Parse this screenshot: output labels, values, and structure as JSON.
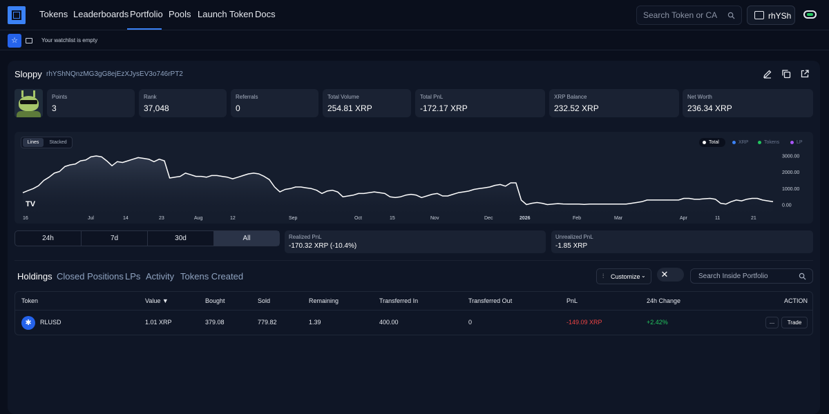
{
  "nav": {
    "links": [
      "Tokens",
      "Leaderboards",
      "Portfolio",
      "Pools",
      "Launch Token",
      "Docs"
    ],
    "active": "Portfolio",
    "search_placeholder": "Search Token or CA",
    "wallet_label": "rhYSh"
  },
  "watchlist": {
    "empty_text": "Your watchlist is empty"
  },
  "profile": {
    "name": "Sloppy",
    "address": "rhYShNQnzMG3gG8ejEzXJysEV3o746rPT2"
  },
  "stats": [
    {
      "label": "Points",
      "value": "3"
    },
    {
      "label": "Rank",
      "value": "37,048"
    },
    {
      "label": "Referrals",
      "value": "0"
    },
    {
      "label": "Total Volume",
      "value": "254.81 XRP"
    },
    {
      "label": "Total PnL",
      "value": "-172.17 XRP"
    },
    {
      "label": "XRP Balance",
      "value": "232.52 XRP"
    },
    {
      "label": "Net Worth",
      "value": "236.34 XRP"
    }
  ],
  "chart_controls": {
    "modes": [
      "Lines",
      "Stacked"
    ],
    "active_mode": "Lines",
    "legend": [
      {
        "name": "Total",
        "color": "#ffffff",
        "active": true
      },
      {
        "name": "XRP",
        "color": "#3b82f6",
        "active": false
      },
      {
        "name": "Tokens",
        "color": "#22c55e",
        "active": false
      },
      {
        "name": "LP",
        "color": "#a855f7",
        "active": false
      }
    ],
    "watermark": "TV"
  },
  "chart_data": {
    "type": "area",
    "series": [
      {
        "values": [
          750,
          880,
          1000,
          1180,
          1500,
          1700,
          1950,
          2050,
          2350,
          2450,
          2500,
          2700,
          2750,
          2950,
          3000,
          2950,
          2700,
          2400,
          2650,
          2600,
          2700,
          2800,
          2900,
          2850,
          2800,
          2650,
          2800,
          2700,
          1650,
          1700,
          1750,
          1950,
          1850,
          1750,
          1750,
          1700,
          1800,
          1800,
          1750,
          1700,
          1600,
          1700,
          1800,
          1900,
          1950,
          1900,
          1750,
          1550,
          1100,
          800,
          950,
          1000,
          1100,
          1100,
          1050,
          1000,
          900,
          700,
          850,
          900,
          800,
          500,
          550,
          600,
          700,
          700,
          750,
          800,
          750,
          700,
          500,
          450,
          500,
          600,
          650,
          600,
          450,
          550,
          650,
          700,
          550,
          550,
          650,
          750,
          800,
          850,
          950,
          1000,
          1050,
          1100,
          1200,
          1250,
          1150,
          1350,
          1350,
          300,
          20,
          100,
          150,
          100,
          20,
          50,
          80,
          60,
          50,
          50,
          50,
          30,
          50,
          50,
          50,
          50,
          50,
          50,
          50,
          50,
          100,
          150,
          200,
          300,
          300,
          300,
          300,
          300,
          300,
          300,
          400,
          400,
          350,
          350,
          380,
          400,
          350,
          100,
          50,
          200,
          300,
          250,
          350,
          400,
          400,
          300,
          250,
          200
        ]
      }
    ],
    "x_tick_labels": [
      "16",
      "Jul",
      "14",
      "23",
      "Aug",
      "12",
      "Sep",
      "Oct",
      "15",
      "Nov",
      "Dec",
      "2026",
      "Feb",
      "Mar",
      "Apr",
      "11",
      "21"
    ],
    "y_tick_labels": [
      "3000.00",
      "2000.00",
      "1000.00",
      "0.00"
    ],
    "ylim": [
      0,
      3000
    ]
  },
  "ranges": {
    "tabs": [
      "24h",
      "7d",
      "30d",
      "All"
    ],
    "active": "All"
  },
  "pnl": {
    "realized_label": "Realized PnL",
    "realized_value": "-170.32 XRP (-10.4%)",
    "unrealized_label": "Unrealized PnL",
    "unrealized_value": "-1.85 XRP"
  },
  "holdings": {
    "tabs": [
      "Holdings",
      "Closed Positions",
      "LPs",
      "Activity",
      "Tokens Created"
    ],
    "active": "Holdings",
    "customize_label": "Customize",
    "search_placeholder": "Search Inside Portfolio",
    "columns": [
      "Token",
      "Value ▼",
      "Bought",
      "Sold",
      "Remaining",
      "Transferred In",
      "Transferred Out",
      "PnL",
      "24h Change",
      "ACTION"
    ],
    "rows": [
      {
        "token": "RLUSD",
        "value": "1.01 XRP",
        "bought": "379.08",
        "sold": "779.82",
        "remaining": "1.39",
        "transferred_in": "400.00",
        "transferred_out": "0",
        "pnl": "-149.09 XRP",
        "change_24h": "+2.42%",
        "more_label": "...",
        "trade_label": "Trade"
      }
    ],
    "colors": {
      "negative": "#ef4444",
      "positive": "#22c55e"
    }
  }
}
